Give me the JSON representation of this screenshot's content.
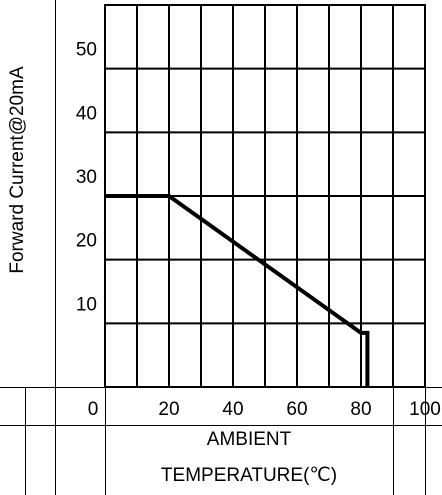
{
  "chart_data": {
    "type": "line",
    "y_label": "Forward Current@20mA",
    "x_label": [
      "AMBIENT",
      "TEMPERATURE(℃)"
    ],
    "x": [
      0,
      20,
      80,
      82,
      82
    ],
    "series": [
      {
        "color": "#000000",
        "values": [
          30,
          30,
          8.5,
          8.5,
          0
        ]
      }
    ],
    "xlim": [
      0,
      100
    ],
    "xticks": [
      0,
      20,
      40,
      60,
      80,
      100
    ],
    "ylim": [
      0,
      60
    ],
    "yticks": [
      10,
      20,
      30,
      40,
      50
    ],
    "grid": true
  }
}
